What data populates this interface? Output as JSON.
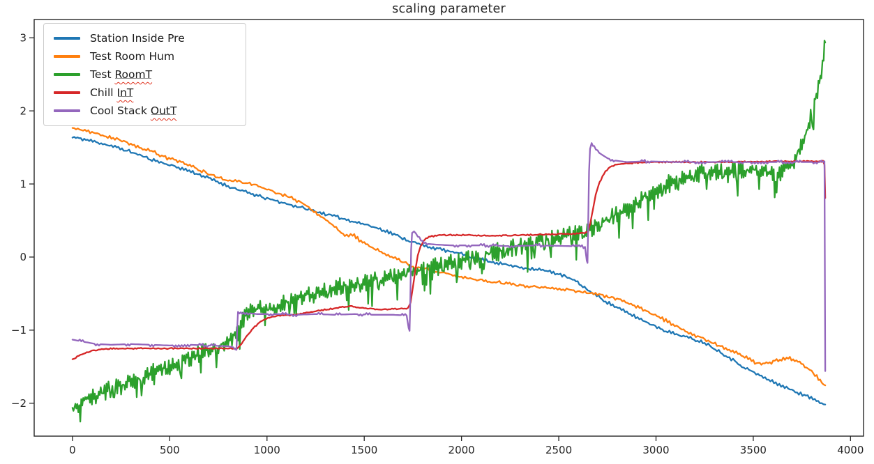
{
  "chart_data": {
    "type": "line",
    "title": "scaling parameter",
    "xlabel": "",
    "ylabel": "",
    "xlim": [
      -197,
      4067
    ],
    "ylim": [
      -2.45,
      3.25
    ],
    "xticks": [
      0,
      500,
      1000,
      1500,
      2000,
      2500,
      3000,
      3500,
      4000
    ],
    "yticks": [
      -2,
      -1,
      0,
      1,
      2,
      3
    ],
    "grid": false,
    "legend_position": "upper left",
    "axis_color": "#262626",
    "series": [
      {
        "name": "Station Inside Pre",
        "color": "#1f77b4",
        "squiggle": "",
        "noise": {
          "amp": 0.016,
          "alt": 0.007,
          "spike": 0,
          "depth": 0,
          "step": 9,
          "seed": 11
        },
        "points": [
          [
            0,
            1.64
          ],
          [
            60,
            1.61
          ],
          [
            130,
            1.57
          ],
          [
            200,
            1.52
          ],
          [
            300,
            1.44
          ],
          [
            400,
            1.34
          ],
          [
            500,
            1.26
          ],
          [
            600,
            1.18
          ],
          [
            700,
            1.08
          ],
          [
            800,
            0.97
          ],
          [
            900,
            0.88
          ],
          [
            1000,
            0.8
          ],
          [
            1100,
            0.73
          ],
          [
            1200,
            0.66
          ],
          [
            1300,
            0.59
          ],
          [
            1400,
            0.52
          ],
          [
            1500,
            0.45
          ],
          [
            1600,
            0.37
          ],
          [
            1680,
            0.28
          ],
          [
            1733,
            0.22
          ],
          [
            1800,
            0.16
          ],
          [
            1900,
            0.1
          ],
          [
            2000,
            0.04
          ],
          [
            2100,
            -0.03
          ],
          [
            2200,
            -0.09
          ],
          [
            2300,
            -0.14
          ],
          [
            2400,
            -0.17
          ],
          [
            2500,
            -0.23
          ],
          [
            2580,
            -0.32
          ],
          [
            2650,
            -0.45
          ],
          [
            2750,
            -0.62
          ],
          [
            2850,
            -0.76
          ],
          [
            2960,
            -0.9
          ],
          [
            3060,
            -1.02
          ],
          [
            3150,
            -1.09
          ],
          [
            3250,
            -1.17
          ],
          [
            3350,
            -1.33
          ],
          [
            3460,
            -1.52
          ],
          [
            3570,
            -1.67
          ],
          [
            3680,
            -1.8
          ],
          [
            3780,
            -1.91
          ],
          [
            3870,
            -2.01
          ]
        ]
      },
      {
        "name": "Test Room Hum",
        "color": "#ff7f0e",
        "squiggle": "",
        "noise": {
          "amp": 0.018,
          "alt": 0.008,
          "spike": 0.02,
          "depth": 0.04,
          "step": 9,
          "seed": 22
        },
        "points": [
          [
            0,
            1.77
          ],
          [
            100,
            1.71
          ],
          [
            200,
            1.64
          ],
          [
            300,
            1.55
          ],
          [
            450,
            1.4
          ],
          [
            550,
            1.31
          ],
          [
            700,
            1.14
          ],
          [
            800,
            1.05
          ],
          [
            920,
            1.0
          ],
          [
            1000,
            0.93
          ],
          [
            1100,
            0.84
          ],
          [
            1180,
            0.74
          ],
          [
            1250,
            0.61
          ],
          [
            1320,
            0.47
          ],
          [
            1400,
            0.29
          ],
          [
            1440,
            0.31
          ],
          [
            1500,
            0.18
          ],
          [
            1560,
            0.11
          ],
          [
            1650,
            0.0
          ],
          [
            1733,
            -0.12
          ],
          [
            1851,
            -0.18
          ],
          [
            2000,
            -0.27
          ],
          [
            2160,
            -0.34
          ],
          [
            2300,
            -0.39
          ],
          [
            2430,
            -0.42
          ],
          [
            2550,
            -0.45
          ],
          [
            2680,
            -0.5
          ],
          [
            2800,
            -0.57
          ],
          [
            2960,
            -0.75
          ],
          [
            3060,
            -0.88
          ],
          [
            3160,
            -1.02
          ],
          [
            3250,
            -1.12
          ],
          [
            3350,
            -1.25
          ],
          [
            3430,
            -1.33
          ],
          [
            3500,
            -1.43
          ],
          [
            3550,
            -1.47
          ],
          [
            3620,
            -1.42
          ],
          [
            3680,
            -1.38
          ],
          [
            3730,
            -1.43
          ],
          [
            3800,
            -1.56
          ],
          [
            3870,
            -1.76
          ]
        ]
      },
      {
        "name": "Test RoomT",
        "color": "#2ca02c",
        "squiggle": "RoomT",
        "noise": {
          "amp": 0.07,
          "alt": 0.05,
          "spike": 0.1,
          "depth": 0.3,
          "step": 5,
          "seed": 33
        },
        "points": [
          [
            0,
            -2.02
          ],
          [
            30,
            -2.12
          ],
          [
            60,
            -1.96
          ],
          [
            100,
            -1.92
          ],
          [
            150,
            -1.86
          ],
          [
            200,
            -1.8
          ],
          [
            250,
            -1.77
          ],
          [
            300,
            -1.7
          ],
          [
            350,
            -1.65
          ],
          [
            400,
            -1.58
          ],
          [
            450,
            -1.53
          ],
          [
            500,
            -1.52
          ],
          [
            550,
            -1.45
          ],
          [
            600,
            -1.38
          ],
          [
            650,
            -1.33
          ],
          [
            700,
            -1.28
          ],
          [
            750,
            -1.22
          ],
          [
            800,
            -1.15
          ],
          [
            850,
            -1.02
          ],
          [
            880,
            -0.85
          ],
          [
            920,
            -0.75
          ],
          [
            960,
            -0.7
          ],
          [
            1000,
            -0.72
          ],
          [
            1050,
            -0.68
          ],
          [
            1100,
            -0.62
          ],
          [
            1150,
            -0.58
          ],
          [
            1200,
            -0.52
          ],
          [
            1260,
            -0.5
          ],
          [
            1320,
            -0.46
          ],
          [
            1380,
            -0.4
          ],
          [
            1440,
            -0.38
          ],
          [
            1500,
            -0.36
          ],
          [
            1560,
            -0.32
          ],
          [
            1620,
            -0.28
          ],
          [
            1680,
            -0.24
          ],
          [
            1733,
            -0.21
          ],
          [
            1800,
            -0.16
          ],
          [
            1860,
            -0.12
          ],
          [
            1920,
            -0.09
          ],
          [
            1980,
            -0.06
          ],
          [
            2040,
            -0.02
          ],
          [
            2100,
            0.02
          ],
          [
            2160,
            0.06
          ],
          [
            2220,
            0.1
          ],
          [
            2280,
            0.14
          ],
          [
            2340,
            0.17
          ],
          [
            2400,
            0.21
          ],
          [
            2460,
            0.24
          ],
          [
            2520,
            0.28
          ],
          [
            2580,
            0.31
          ],
          [
            2647,
            0.36
          ],
          [
            2700,
            0.43
          ],
          [
            2760,
            0.52
          ],
          [
            2820,
            0.61
          ],
          [
            2880,
            0.71
          ],
          [
            2940,
            0.81
          ],
          [
            3000,
            0.9
          ],
          [
            3060,
            1.0
          ],
          [
            3120,
            1.07
          ],
          [
            3180,
            1.12
          ],
          [
            3240,
            1.15
          ],
          [
            3300,
            1.17
          ],
          [
            3360,
            1.18
          ],
          [
            3420,
            1.2
          ],
          [
            3480,
            1.2
          ],
          [
            3540,
            1.18
          ],
          [
            3600,
            1.15
          ],
          [
            3650,
            1.17
          ],
          [
            3685,
            1.22
          ],
          [
            3710,
            1.32
          ],
          [
            3740,
            1.5
          ],
          [
            3770,
            1.71
          ],
          [
            3800,
            1.96
          ],
          [
            3830,
            2.25
          ],
          [
            3850,
            2.55
          ],
          [
            3862,
            2.76
          ],
          [
            3870,
            2.95
          ]
        ]
      },
      {
        "name": "Chill InT",
        "color": "#d62728",
        "squiggle": "InT",
        "noise": {
          "amp": 0.007,
          "alt": 0.002,
          "spike": 0,
          "depth": 0,
          "step": 8,
          "seed": 44
        },
        "points": [
          [
            0,
            -1.4
          ],
          [
            40,
            -1.34
          ],
          [
            90,
            -1.29
          ],
          [
            150,
            -1.26
          ],
          [
            250,
            -1.25
          ],
          [
            400,
            -1.25
          ],
          [
            550,
            -1.25
          ],
          [
            700,
            -1.25
          ],
          [
            846,
            -1.25
          ],
          [
            870,
            -1.18
          ],
          [
            900,
            -1.07
          ],
          [
            930,
            -0.97
          ],
          [
            960,
            -0.9
          ],
          [
            990,
            -0.85
          ],
          [
            1020,
            -0.82
          ],
          [
            1060,
            -0.8
          ],
          [
            1150,
            -0.79
          ],
          [
            1250,
            -0.74
          ],
          [
            1350,
            -0.7
          ],
          [
            1420,
            -0.67
          ],
          [
            1500,
            -0.7
          ],
          [
            1580,
            -0.72
          ],
          [
            1650,
            -0.71
          ],
          [
            1725,
            -0.7
          ],
          [
            1738,
            -0.62
          ],
          [
            1750,
            -0.42
          ],
          [
            1762,
            -0.18
          ],
          [
            1775,
            0.02
          ],
          [
            1790,
            0.15
          ],
          [
            1810,
            0.24
          ],
          [
            1840,
            0.28
          ],
          [
            1880,
            0.3
          ],
          [
            2000,
            0.3
          ],
          [
            2150,
            0.29
          ],
          [
            2300,
            0.3
          ],
          [
            2450,
            0.31
          ],
          [
            2600,
            0.32
          ],
          [
            2650,
            0.34
          ],
          [
            2662,
            0.46
          ],
          [
            2676,
            0.66
          ],
          [
            2690,
            0.86
          ],
          [
            2710,
            1.02
          ],
          [
            2732,
            1.14
          ],
          [
            2756,
            1.22
          ],
          [
            2790,
            1.26
          ],
          [
            2840,
            1.28
          ],
          [
            2900,
            1.29
          ],
          [
            3000,
            1.3
          ],
          [
            3200,
            1.3
          ],
          [
            3400,
            1.3
          ],
          [
            3600,
            1.31
          ],
          [
            3800,
            1.31
          ],
          [
            3858,
            1.31
          ],
          [
            3866,
            1.27
          ],
          [
            3870,
            0.8
          ]
        ]
      },
      {
        "name": "Cool Stack OutT",
        "color": "#9467bd",
        "squiggle": "OutT",
        "noise": {
          "amp": 0.012,
          "alt": 0.003,
          "spike": 0,
          "depth": 0,
          "step": 8,
          "seed": 55,
          "quant": 0.02,
          "hold": 4
        },
        "points": [
          [
            0,
            -1.13
          ],
          [
            60,
            -1.16
          ],
          [
            120,
            -1.19
          ],
          [
            200,
            -1.2
          ],
          [
            300,
            -1.19
          ],
          [
            400,
            -1.2
          ],
          [
            500,
            -1.21
          ],
          [
            600,
            -1.2
          ],
          [
            700,
            -1.21
          ],
          [
            800,
            -1.22
          ],
          [
            835,
            -1.24
          ],
          [
            843,
            -1.27
          ],
          [
            847,
            -0.95
          ],
          [
            851,
            -0.75
          ],
          [
            880,
            -0.76
          ],
          [
            950,
            -0.78
          ],
          [
            1050,
            -0.78
          ],
          [
            1150,
            -0.79
          ],
          [
            1250,
            -0.78
          ],
          [
            1350,
            -0.79
          ],
          [
            1450,
            -0.78
          ],
          [
            1550,
            -0.79
          ],
          [
            1650,
            -0.79
          ],
          [
            1718,
            -0.8
          ],
          [
            1728,
            -0.97
          ],
          [
            1733,
            -1.01
          ],
          [
            1737,
            -0.55
          ],
          [
            1741,
            0.1
          ],
          [
            1746,
            0.33
          ],
          [
            1756,
            0.35
          ],
          [
            1775,
            0.3
          ],
          [
            1800,
            0.22
          ],
          [
            1830,
            0.18
          ],
          [
            1870,
            0.17
          ],
          [
            1950,
            0.16
          ],
          [
            2100,
            0.16
          ],
          [
            2250,
            0.15
          ],
          [
            2400,
            0.16
          ],
          [
            2550,
            0.15
          ],
          [
            2635,
            0.14
          ],
          [
            2644,
            -0.03
          ],
          [
            2648,
            -0.08
          ],
          [
            2652,
            0.55
          ],
          [
            2656,
            1.15
          ],
          [
            2661,
            1.48
          ],
          [
            2669,
            1.54
          ],
          [
            2682,
            1.5
          ],
          [
            2700,
            1.44
          ],
          [
            2722,
            1.4
          ],
          [
            2752,
            1.35
          ],
          [
            2790,
            1.32
          ],
          [
            2850,
            1.3
          ],
          [
            2950,
            1.31
          ],
          [
            3100,
            1.3
          ],
          [
            3300,
            1.3
          ],
          [
            3500,
            1.3
          ],
          [
            3700,
            1.3
          ],
          [
            3858,
            1.3
          ],
          [
            3866,
            1.29
          ],
          [
            3870,
            -1.56
          ]
        ]
      }
    ]
  }
}
